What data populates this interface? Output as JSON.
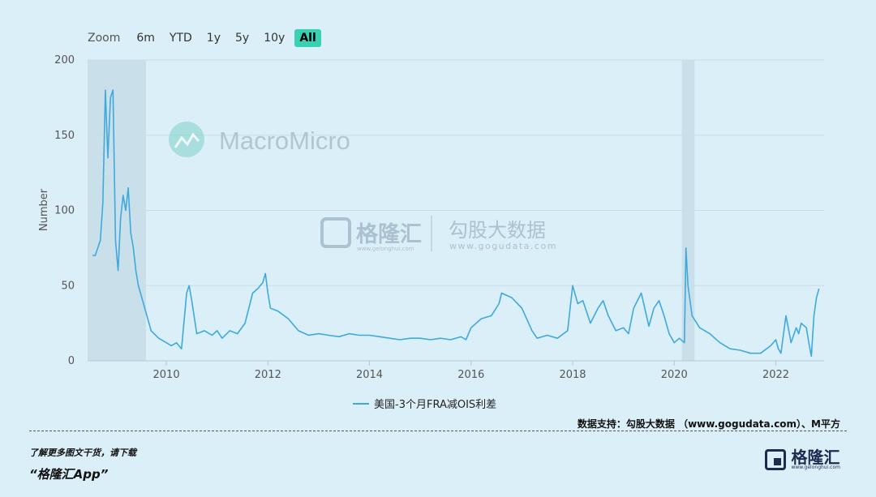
{
  "zoom": {
    "label": "Zoom",
    "buttons": [
      "6m",
      "YTD",
      "1y",
      "5y",
      "10y",
      "All"
    ],
    "active": "All"
  },
  "watermarks": {
    "macromicro": "MacroMicro",
    "gelonghui_name": "格隆汇",
    "gelonghui_url": "www.gelonghui.com",
    "gogudata_name": "勾股大数据",
    "gogudata_url": "www.gogudata.com"
  },
  "legend": {
    "series_name": "美国-3个月FRA减OIS利差",
    "color": "#3fa9de"
  },
  "source_note": "数据支持：勾股大数据 （www.gogudata.com）、M平方",
  "footer": {
    "line1": "了解更多图文干货，请下载",
    "line2": "“格隆汇App”",
    "logo_name": "格隆汇",
    "logo_url": "www.gelonghui.com"
  },
  "colors": {
    "line": "#3fa9de",
    "recession_band": "#c9dfe9",
    "grid": "#c7dde8",
    "background": "#dbeff9"
  },
  "chart_data": {
    "type": "line",
    "title": "",
    "xlabel": "",
    "ylabel": "Number",
    "xlim": [
      2008.45,
      2022.95
    ],
    "ylim": [
      0,
      200
    ],
    "y_ticks": [
      0,
      50,
      100,
      150,
      200
    ],
    "x_ticks": [
      2010,
      2012,
      2014,
      2016,
      2018,
      2020,
      2022
    ],
    "grid": true,
    "legend_position": "bottom",
    "shaded_periods": [
      [
        2008.45,
        2009.6
      ],
      [
        2020.15,
        2020.4
      ]
    ],
    "series": [
      {
        "name": "美国-3个月FRA减OIS利差",
        "x": [
          2008.55,
          2008.6,
          2008.65,
          2008.7,
          2008.75,
          2008.8,
          2008.85,
          2008.9,
          2008.95,
          2009.0,
          2009.05,
          2009.1,
          2009.15,
          2009.2,
          2009.25,
          2009.3,
          2009.35,
          2009.4,
          2009.45,
          2009.55,
          2009.7,
          2009.85,
          2010.0,
          2010.1,
          2010.2,
          2010.3,
          2010.4,
          2010.45,
          2010.5,
          2010.6,
          2010.75,
          2010.9,
          2011.0,
          2011.1,
          2011.25,
          2011.4,
          2011.55,
          2011.7,
          2011.8,
          2011.9,
          2011.95,
          2012.0,
          2012.05,
          2012.2,
          2012.4,
          2012.6,
          2012.8,
          2013.0,
          2013.2,
          2013.4,
          2013.6,
          2013.8,
          2014.0,
          2014.2,
          2014.4,
          2014.6,
          2014.8,
          2015.0,
          2015.2,
          2015.4,
          2015.6,
          2015.8,
          2015.9,
          2016.0,
          2016.2,
          2016.4,
          2016.55,
          2016.6,
          2016.8,
          2017.0,
          2017.2,
          2017.3,
          2017.5,
          2017.7,
          2017.9,
          2018.0,
          2018.1,
          2018.2,
          2018.35,
          2018.5,
          2018.6,
          2018.7,
          2018.85,
          2019.0,
          2019.1,
          2019.2,
          2019.35,
          2019.5,
          2019.6,
          2019.7,
          2019.8,
          2019.9,
          2020.0,
          2020.1,
          2020.2,
          2020.23,
          2020.27,
          2020.35,
          2020.5,
          2020.7,
          2020.9,
          2021.1,
          2021.3,
          2021.5,
          2021.7,
          2021.9,
          2022.0,
          2022.05,
          2022.1,
          2022.2,
          2022.3,
          2022.4,
          2022.45,
          2022.5,
          2022.6,
          2022.65,
          2022.7,
          2022.75,
          2022.8,
          2022.85
        ],
        "values": [
          70,
          70,
          75,
          80,
          105,
          180,
          135,
          175,
          180,
          80,
          60,
          95,
          110,
          100,
          115,
          85,
          75,
          60,
          50,
          38,
          20,
          15,
          12,
          10,
          12,
          8,
          45,
          50,
          40,
          18,
          20,
          17,
          20,
          15,
          20,
          18,
          25,
          45,
          48,
          52,
          58,
          45,
          35,
          33,
          28,
          20,
          17,
          18,
          17,
          16,
          18,
          17,
          17,
          16,
          15,
          14,
          15,
          15,
          14,
          15,
          14,
          16,
          14,
          22,
          28,
          30,
          38,
          45,
          42,
          35,
          20,
          15,
          17,
          15,
          20,
          50,
          38,
          40,
          25,
          35,
          40,
          30,
          20,
          22,
          18,
          35,
          45,
          23,
          35,
          40,
          30,
          18,
          12,
          15,
          12,
          75,
          50,
          30,
          22,
          18,
          12,
          8,
          7,
          5,
          5,
          10,
          14,
          8,
          5,
          30,
          12,
          22,
          18,
          25,
          22,
          12,
          3,
          30,
          42,
          48
        ]
      }
    ]
  }
}
